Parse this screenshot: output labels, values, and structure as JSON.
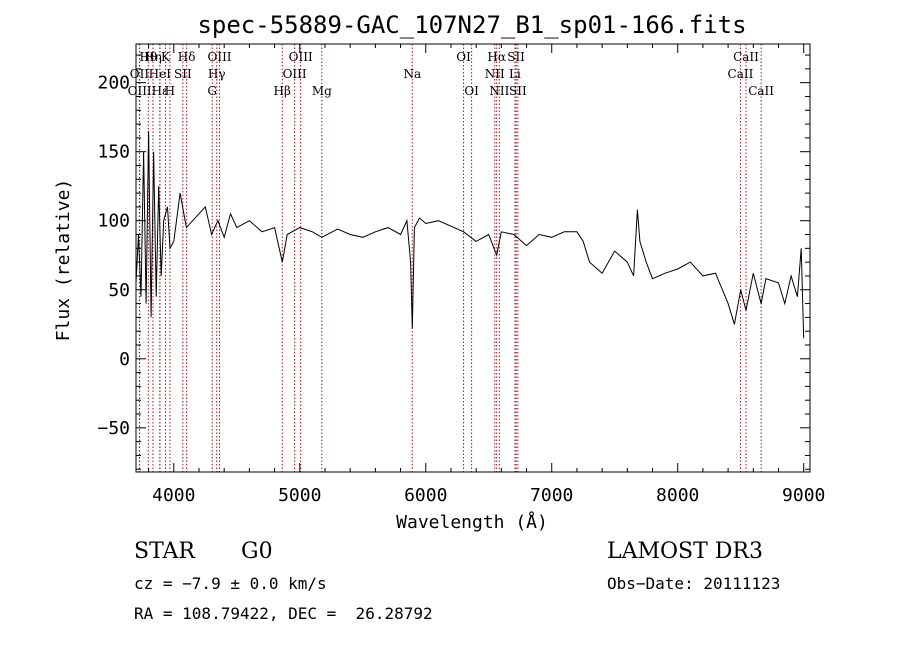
{
  "chart_data": {
    "type": "line",
    "title": "spec-55889-GAC_107N27_B1_sp01-166.fits",
    "xlabel": "Wavelength (Å)",
    "ylabel": "Flux (relative)",
    "xlim": [
      3700,
      9050
    ],
    "ylim": [
      -82,
      228
    ],
    "xticks": [
      4000,
      5000,
      6000,
      7000,
      8000,
      9000
    ],
    "xtick_labels": [
      "4000",
      "5000",
      "6000",
      "7000",
      "8000",
      "9000"
    ],
    "yticks": [
      -50,
      0,
      50,
      100,
      150,
      200
    ],
    "ytick_labels": [
      "−50",
      "0",
      "50",
      "100",
      "150",
      "200"
    ],
    "spectrum": {
      "name": "flux",
      "wavelength": [
        3700,
        3720,
        3740,
        3760,
        3780,
        3800,
        3820,
        3840,
        3860,
        3880,
        3900,
        3920,
        3950,
        3970,
        4000,
        4050,
        4100,
        4150,
        4200,
        4250,
        4300,
        4350,
        4400,
        4450,
        4500,
        4600,
        4700,
        4800,
        4861,
        4900,
        5000,
        5100,
        5175,
        5300,
        5400,
        5500,
        5600,
        5700,
        5800,
        5850,
        5880,
        5893,
        5910,
        5950,
        6000,
        6100,
        6200,
        6300,
        6400,
        6500,
        6563,
        6600,
        6700,
        6800,
        6900,
        7000,
        7100,
        7200,
        7250,
        7300,
        7400,
        7500,
        7600,
        7650,
        7680,
        7700,
        7750,
        7800,
        7900,
        8000,
        8100,
        8200,
        8300,
        8400,
        8450,
        8500,
        8542,
        8600,
        8662,
        8700,
        8800,
        8850,
        8900,
        8950,
        8980,
        9000
      ],
      "flux": [
        55,
        90,
        45,
        150,
        40,
        165,
        30,
        150,
        45,
        125,
        60,
        100,
        110,
        80,
        85,
        120,
        95,
        100,
        105,
        110,
        90,
        100,
        88,
        105,
        95,
        100,
        92,
        95,
        70,
        90,
        95,
        92,
        88,
        94,
        90,
        88,
        92,
        95,
        90,
        100,
        70,
        22,
        95,
        102,
        98,
        100,
        96,
        92,
        85,
        90,
        75,
        92,
        90,
        82,
        90,
        88,
        92,
        92,
        85,
        70,
        62,
        78,
        70,
        60,
        108,
        85,
        70,
        58,
        62,
        65,
        70,
        60,
        62,
        40,
        25,
        50,
        35,
        62,
        40,
        58,
        55,
        40,
        60,
        45,
        80,
        15
      ]
    },
    "spectral_lines": [
      {
        "label": "Hθ",
        "wavelength": 3798,
        "row": 1
      },
      {
        "label": "OII",
        "wavelength": 3727,
        "row": 2
      },
      {
        "label": "OIII",
        "wavelength": 3729,
        "row": 3
      },
      {
        "label": "Hη",
        "wavelength": 3835,
        "row": 1
      },
      {
        "label": "HeI",
        "wavelength": 3889,
        "row": 2
      },
      {
        "label": "Hε",
        "wavelength": 3890,
        "row": 3
      },
      {
        "label": "K",
        "wavelength": 3934,
        "row": 1
      },
      {
        "label": "H",
        "wavelength": 3969,
        "row": 3
      },
      {
        "label": "SII",
        "wavelength": 4072,
        "row": 2
      },
      {
        "label": "Hδ",
        "wavelength": 4102,
        "row": 1
      },
      {
        "label": "G",
        "wavelength": 4305,
        "row": 3
      },
      {
        "label": "Hγ",
        "wavelength": 4341,
        "row": 2
      },
      {
        "label": "OIII",
        "wavelength": 4363,
        "row": 1
      },
      {
        "label": "Hβ",
        "wavelength": 4861,
        "row": 3
      },
      {
        "label": "OIII",
        "wavelength": 4959,
        "row": 2
      },
      {
        "label": "OIII",
        "wavelength": 5007,
        "row": 1
      },
      {
        "label": "Mg",
        "wavelength": 5175,
        "row": 3
      },
      {
        "label": "Na",
        "wavelength": 5893,
        "row": 2
      },
      {
        "label": "OI",
        "wavelength": 6300,
        "row": 1
      },
      {
        "label": "OI",
        "wavelength": 6364,
        "row": 3
      },
      {
        "label": "NII",
        "wavelength": 6548,
        "row": 2
      },
      {
        "label": "Hα",
        "wavelength": 6563,
        "row": 1
      },
      {
        "label": "NII",
        "wavelength": 6584,
        "row": 3
      },
      {
        "label": "Li",
        "wavelength": 6708,
        "row": 2
      },
      {
        "label": "SII",
        "wavelength": 6717,
        "row": 1
      },
      {
        "label": "SII",
        "wavelength": 6731,
        "row": 3
      },
      {
        "label": "CaII",
        "wavelength": 8498,
        "row": 2
      },
      {
        "label": "CaII",
        "wavelength": 8542,
        "row": 1
      },
      {
        "label": "CaII",
        "wavelength": 8662,
        "row": 3
      }
    ],
    "colors": {
      "line": "#000000",
      "markers": "#a01818",
      "axes": "#000000"
    }
  },
  "info": {
    "class": "STAR",
    "subclass": "G0",
    "survey": "LAMOST DR3",
    "velocity": "cz = −7.9 ± 0.0 km/s",
    "obs_date": "Obs−Date: 20111123",
    "coords": "RA = 108.79422, DEC =  26.28792"
  }
}
